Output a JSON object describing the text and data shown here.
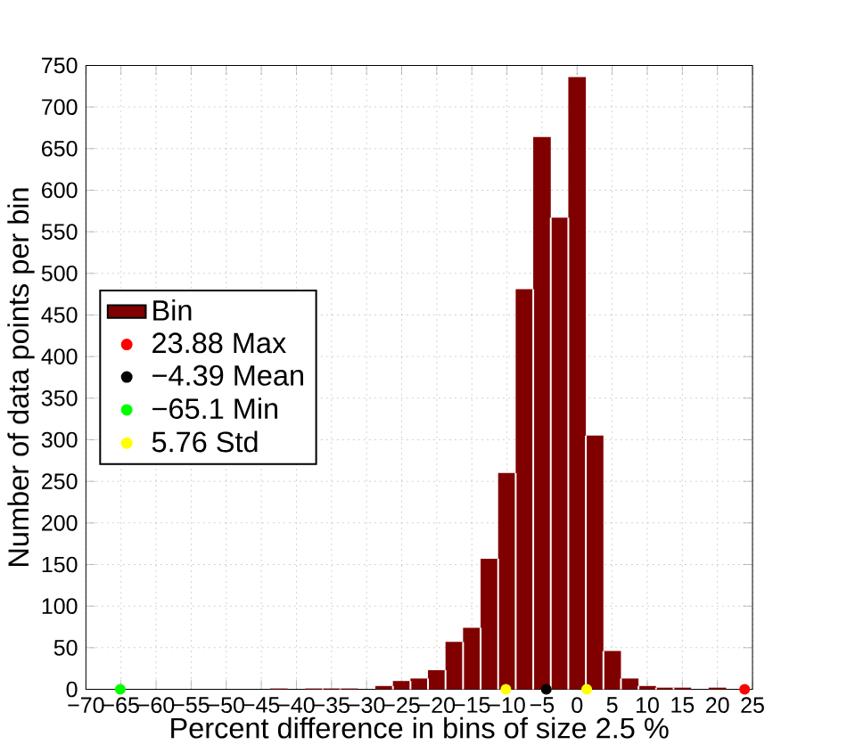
{
  "chart_data": {
    "type": "histogram",
    "xlabel": "Percent difference in bins of size 2.5 %",
    "ylabel": "Number of data points per bin",
    "bins": [
      -66.25,
      -63.75,
      -61.25,
      -58.75,
      -56.25,
      -53.75,
      -51.25,
      -48.75,
      -46.25,
      -43.75,
      -41.25,
      -38.75,
      -36.25,
      -33.75,
      -31.25,
      -28.75,
      -26.25,
      -23.75,
      -21.25,
      -18.75,
      -16.25,
      -13.75,
      -11.25,
      -8.75,
      -6.25,
      -3.75,
      -1.25,
      1.25,
      3.75,
      6.25,
      8.75,
      11.25,
      13.75,
      16.25,
      18.75,
      21.25,
      23.75
    ],
    "series": [
      {
        "name": "Bin",
        "color": "#800000",
        "values": [
          0,
          0,
          0,
          0,
          0,
          0,
          0,
          0,
          0,
          1,
          0,
          1,
          1,
          1,
          0,
          4,
          10,
          13,
          23,
          57,
          74,
          157,
          260,
          481,
          664,
          567,
          736,
          305,
          46,
          13,
          4,
          2,
          2,
          0,
          2,
          0
        ]
      },
      {
        "type": "scatter",
        "name": "23.88 Max",
        "color": "#ff0000",
        "x": [
          23.88
        ],
        "values": [
          0
        ]
      },
      {
        "type": "scatter",
        "name": "−4.39 Mean",
        "color": "#000000",
        "x": [
          -4.39
        ],
        "values": [
          0
        ]
      },
      {
        "type": "scatter",
        "name": "−65.1 Min",
        "color": "#00ff00",
        "x": [
          -65.1
        ],
        "values": [
          0
        ]
      },
      {
        "type": "scatter",
        "name": "5.76 Std",
        "color": "#ffff00",
        "x": [
          -10.15,
          1.37
        ],
        "values": [
          0,
          0
        ]
      }
    ],
    "xlim": [
      -70,
      25
    ],
    "ylim": [
      0,
      750
    ],
    "xticks": [
      {
        "value": -70,
        "label": "−70"
      },
      {
        "value": -65,
        "label": "−65"
      },
      {
        "value": -60,
        "label": "−60"
      },
      {
        "value": -55,
        "label": "−55"
      },
      {
        "value": -50,
        "label": "−50"
      },
      {
        "value": -45,
        "label": "−45"
      },
      {
        "value": -40,
        "label": "−40"
      },
      {
        "value": -35,
        "label": "−35"
      },
      {
        "value": -30,
        "label": "−30"
      },
      {
        "value": -25,
        "label": "−25"
      },
      {
        "value": -20,
        "label": "−20"
      },
      {
        "value": -15,
        "label": "−15"
      },
      {
        "value": -10,
        "label": "−10"
      },
      {
        "value": -5,
        "label": "−5"
      },
      0,
      5,
      10,
      15,
      20,
      25
    ],
    "yticks": [
      0,
      50,
      100,
      150,
      200,
      250,
      300,
      350,
      400,
      450,
      500,
      550,
      600,
      650,
      700,
      750
    ],
    "grid": true,
    "legend": "left"
  }
}
